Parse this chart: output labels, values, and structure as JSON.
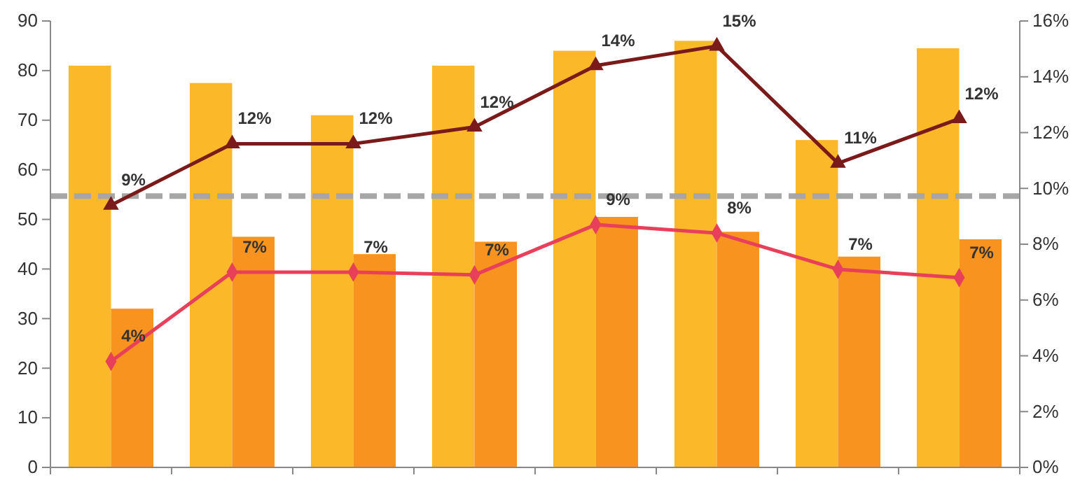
{
  "chart_data": {
    "type": "bar",
    "categories": [
      null,
      null,
      null,
      null,
      null,
      null,
      null,
      null
    ],
    "series": [
      {
        "color": "#fbb829",
        "values": [
          81,
          77.5,
          71,
          81,
          84,
          86,
          66,
          84.5
        ]
      },
      {
        "color": "#f7931e",
        "values": [
          32,
          46.5,
          43,
          45.5,
          50.5,
          47.5,
          42.5,
          46
        ]
      },
      {
        "type": "line",
        "axis": "y2",
        "color": "#7b1a1a",
        "marker": "triangle",
        "values": [
          9.4,
          11.6,
          11.6,
          12.2,
          14.4,
          15.1,
          10.9,
          12.5
        ],
        "value_labels": [
          "9%",
          "12%",
          "12%",
          "12%",
          "14%",
          "15%",
          "11%",
          "12%"
        ]
      },
      {
        "type": "line",
        "axis": "y2",
        "color": "#e8405a",
        "marker": "diamond",
        "values": [
          3.8,
          7,
          7,
          6.9,
          8.7,
          8.4,
          7.1,
          6.8
        ],
        "value_labels": [
          "4%",
          "7%",
          "7%",
          "7%",
          "9%",
          "8%",
          "7%",
          "7%"
        ]
      }
    ],
    "ylim": [
      0,
      90
    ],
    "yticks": [
      0,
      10,
      20,
      30,
      40,
      50,
      60,
      70,
      80,
      90
    ],
    "y2lim": [
      0,
      16
    ],
    "y2ticks": [
      {
        "value": 0,
        "label": "0%"
      },
      {
        "value": 2,
        "label": "2%"
      },
      {
        "value": 4,
        "label": "4%"
      },
      {
        "value": 6,
        "label": "6%"
      },
      {
        "value": 8,
        "label": "8%"
      },
      {
        "value": 10,
        "label": "10%"
      },
      {
        "value": 12,
        "label": "12%"
      },
      {
        "value": 14,
        "label": "14%"
      },
      {
        "value": 16,
        "label": "16%"
      }
    ],
    "ref_lines": [
      {
        "axis": "y",
        "value": 54.7,
        "color": "#a6a6a6",
        "line_style": "dashed"
      }
    ],
    "grid": false
  }
}
